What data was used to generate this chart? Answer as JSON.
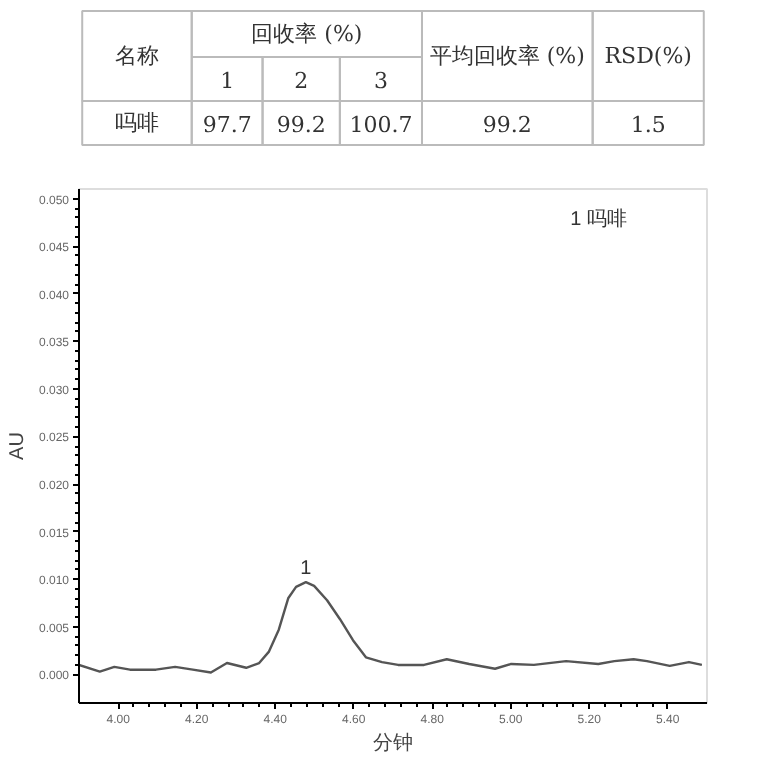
{
  "chart_data": [
    {
      "type": "other",
      "annotations": [
        "名称",
        "回收率 (%)",
        "平均回收率 (%)",
        "RSD(%)",
        "1",
        "2",
        "3",
        "吗啡",
        "97.7",
        "99.2",
        "100.7",
        "99.2",
        "1.5"
      ]
    },
    {
      "type": "line",
      "xlabel": "分钟",
      "ylabel": "AU",
      "color": "#555555",
      "x": [
        3.9,
        3.953,
        3.99,
        4.03,
        4.096,
        4.145,
        4.19,
        4.236,
        4.277,
        4.326,
        4.359,
        4.384,
        4.409,
        4.433,
        4.453,
        4.478,
        4.499,
        4.532,
        4.565,
        4.598,
        4.631,
        4.672,
        4.713,
        4.779,
        4.837,
        4.894,
        4.96,
        5.001,
        5.059,
        5.141,
        5.223,
        5.264,
        5.313,
        5.347,
        5.405,
        5.454,
        5.487
      ],
      "values": [
        0.001,
        0.0003,
        0.0008,
        0.0005,
        0.0005,
        0.0008,
        0.0005,
        0.0002,
        0.0012,
        0.0007,
        0.0012,
        0.0024,
        0.0047,
        0.008,
        0.0092,
        0.0097,
        0.0093,
        0.0078,
        0.0058,
        0.0036,
        0.0018,
        0.0013,
        0.001,
        0.001,
        0.0016,
        0.0011,
        0.0006,
        0.0011,
        0.001,
        0.0014,
        0.0011,
        0.0014,
        0.0016,
        0.0014,
        0.0009,
        0.0013,
        0.001
      ],
      "xlim": [
        3.9,
        5.5
      ],
      "ylim": [
        -0.003,
        0.051
      ],
      "xticks": [
        {
          "value": 4.0,
          "label": "4.00"
        },
        {
          "value": 4.2,
          "label": "4.20"
        },
        {
          "value": 4.4,
          "label": "4.40"
        },
        {
          "value": 4.6,
          "label": "4.60"
        },
        {
          "value": 4.8,
          "label": "4.80"
        },
        {
          "value": 5.0,
          "label": "5.00"
        },
        {
          "value": 5.2,
          "label": "5.20"
        },
        {
          "value": 5.4,
          "label": "5.40"
        }
      ],
      "yticks": [
        {
          "value": 0,
          "label": "0.000"
        },
        0.005,
        {
          "value": 0.01,
          "label": "0.010"
        },
        0.015,
        {
          "value": 0.02,
          "label": "0.020"
        },
        0.025,
        {
          "value": 0.03,
          "label": "0.030"
        },
        0.035,
        {
          "value": 0.04,
          "label": "0.040"
        },
        0.045,
        {
          "value": 0.05,
          "label": "0.050"
        }
      ],
      "annotations": [
        {
          "text": "1",
          "x": 4.478,
          "y": 0.0097
        },
        "1 吗啡"
      ],
      "grid": false,
      "marker": "none",
      "line_style": "solid"
    }
  ]
}
